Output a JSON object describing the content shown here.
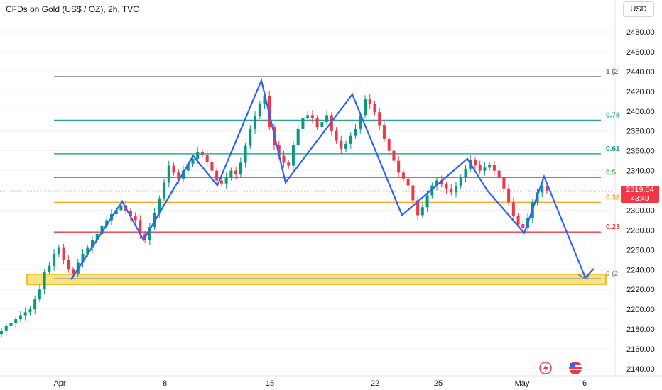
{
  "header": {
    "title": "CFDs on Gold (US$ / OZ), 2h, TVC",
    "currency_button": "USD"
  },
  "price_tag": {
    "price": "2319.04",
    "countdown": "43:49",
    "color": "#f23645"
  },
  "chart_data": {
    "type": "candlestick",
    "title": "CFDs on Gold (US$ / OZ), 2h, TVC",
    "ylim": [
      2130,
      2490
    ],
    "y_ticks": [
      2140,
      2160,
      2180,
      2200,
      2220,
      2240,
      2260,
      2280,
      2300,
      2320,
      2340,
      2360,
      2380,
      2400,
      2420,
      2440,
      2460,
      2480
    ],
    "x_ticks": [
      "Apr",
      "8",
      "15",
      "22",
      "25",
      "May",
      "6"
    ],
    "current_price": 2319.04,
    "fib_levels": [
      {
        "label": "1 (2",
        "value": 2435,
        "color": "#787b86"
      },
      {
        "label": "0.78",
        "value": 2391,
        "color": "#26a69a"
      },
      {
        "label": "0.61",
        "value": 2357,
        "color": "#089981"
      },
      {
        "label": "0.5",
        "value": 2333,
        "color": "#4caf50"
      },
      {
        "label": "0.38",
        "value": 2308,
        "color": "#f4a728"
      },
      {
        "label": "0.23",
        "value": 2278,
        "color": "#f23645"
      },
      {
        "label": "0 (2",
        "value": 2231,
        "color": "#9c9c9c"
      }
    ],
    "support_zone": {
      "low": 2228,
      "high": 2234,
      "color": "#f9e37c"
    },
    "zigzag_path": [
      {
        "x": "Apr",
        "y": 2230
      },
      {
        "x": "Apr 4",
        "y": 2309
      },
      {
        "x": "Apr 6",
        "y": 2270
      },
      {
        "x": "Apr 9",
        "y": 2355
      },
      {
        "x": "Apr 11",
        "y": 2325
      },
      {
        "x": "Apr 14",
        "y": 2431
      },
      {
        "x": "Apr 16",
        "y": 2328
      },
      {
        "x": "Apr 19",
        "y": 2417
      },
      {
        "x": "Apr 23",
        "y": 2295
      },
      {
        "x": "Apr 26",
        "y": 2352
      },
      {
        "x": "Apr 28",
        "y": 2320
      },
      {
        "x": "May 1",
        "y": 2277
      },
      {
        "x": "May 2",
        "y": 2334
      },
      {
        "x": "May 5",
        "y": 2232
      },
      {
        "x": "May 6",
        "y": 2241
      }
    ],
    "candles_close": [
      2178,
      2183,
      2186,
      2190,
      2194,
      2197,
      2200,
      2210,
      2220,
      2238,
      2244,
      2256,
      2262,
      2250,
      2240,
      2236,
      2247,
      2256,
      2262,
      2270,
      2276,
      2284,
      2290,
      2296,
      2300,
      2305,
      2299,
      2294,
      2290,
      2276,
      2270,
      2283,
      2297,
      2312,
      2328,
      2345,
      2338,
      2332,
      2340,
      2347,
      2352,
      2359,
      2356,
      2349,
      2340,
      2330,
      2327,
      2333,
      2340,
      2336,
      2348,
      2365,
      2382,
      2395,
      2407,
      2415,
      2384,
      2366,
      2355,
      2348,
      2345,
      2366,
      2382,
      2393,
      2396,
      2393,
      2384,
      2389,
      2396,
      2380,
      2370,
      2362,
      2367,
      2375,
      2382,
      2396,
      2412,
      2407,
      2399,
      2386,
      2372,
      2360,
      2350,
      2338,
      2332,
      2325,
      2310,
      2295,
      2303,
      2315,
      2325,
      2330,
      2326,
      2322,
      2318,
      2324,
      2333,
      2342,
      2351,
      2346,
      2340,
      2343,
      2346,
      2340,
      2333,
      2322,
      2308,
      2294,
      2286,
      2282,
      2292,
      2308,
      2318,
      2324,
      2319
    ]
  }
}
